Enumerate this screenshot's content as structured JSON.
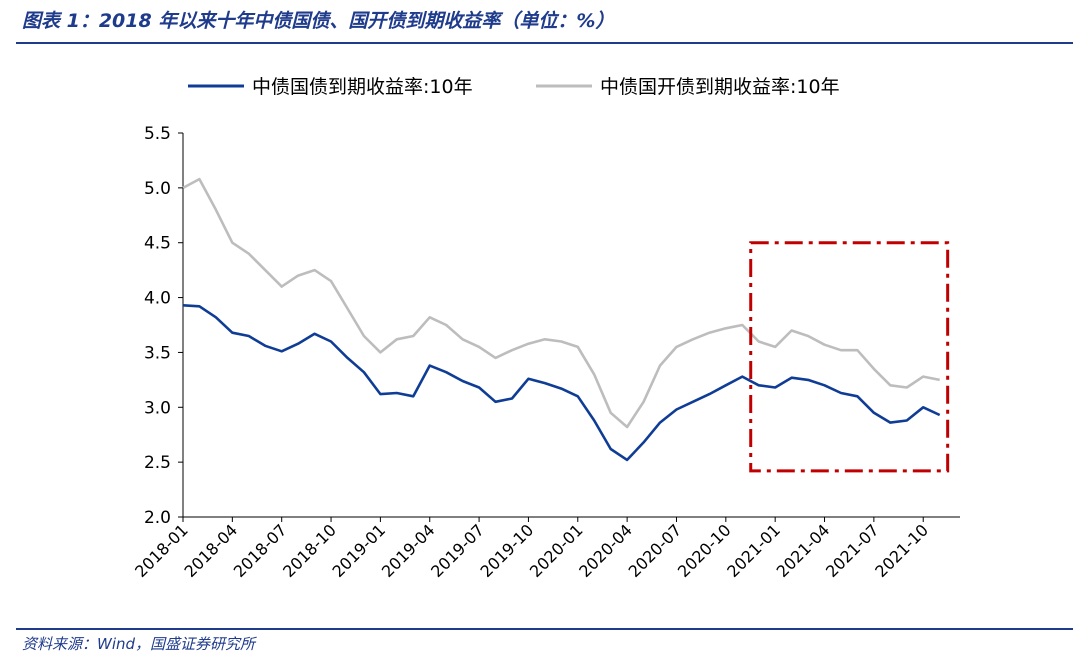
{
  "title": "图表 1：2018 年以来十年中债国债、国开债到期收益率（单位：%）",
  "source": "资料来源：Wind，国盛证券研究所",
  "colors": {
    "accent": "#1f3b8c",
    "series_treasury": "#0f3d96",
    "series_cdb": "#bdbdbd",
    "highlight_box": "#c00000"
  },
  "chart_data": {
    "type": "line",
    "title": "",
    "xlabel": "",
    "ylabel": "",
    "ylim": [
      2.0,
      5.5
    ],
    "yticks": [
      "5.5",
      "5.0",
      "4.5",
      "4.0",
      "3.5",
      "3.0",
      "2.5",
      "2.0"
    ],
    "xticks": [
      "2018-01",
      "2018-04",
      "2018-07",
      "2018-10",
      "2019-01",
      "2019-04",
      "2019-07",
      "2019-10",
      "2020-01",
      "2020-04",
      "2020-07",
      "2020-10",
      "2021-01",
      "2021-04",
      "2021-07",
      "2021-10"
    ],
    "x": [
      "2018-01",
      "2018-02",
      "2018-03",
      "2018-04",
      "2018-05",
      "2018-06",
      "2018-07",
      "2018-08",
      "2018-09",
      "2018-10",
      "2018-11",
      "2018-12",
      "2019-01",
      "2019-02",
      "2019-03",
      "2019-04",
      "2019-05",
      "2019-06",
      "2019-07",
      "2019-08",
      "2019-09",
      "2019-10",
      "2019-11",
      "2019-12",
      "2020-01",
      "2020-02",
      "2020-03",
      "2020-04",
      "2020-05",
      "2020-06",
      "2020-07",
      "2020-08",
      "2020-09",
      "2020-10",
      "2020-11",
      "2020-12",
      "2021-01",
      "2021-02",
      "2021-03",
      "2021-04",
      "2021-05",
      "2021-06",
      "2021-07",
      "2021-08",
      "2021-09",
      "2021-10",
      "2021-11"
    ],
    "series": [
      {
        "name": "中债国债到期收益率:10年",
        "values": [
          3.93,
          3.92,
          3.82,
          3.68,
          3.65,
          3.56,
          3.51,
          3.58,
          3.67,
          3.6,
          3.45,
          3.32,
          3.12,
          3.13,
          3.1,
          3.38,
          3.32,
          3.24,
          3.18,
          3.05,
          3.08,
          3.26,
          3.22,
          3.17,
          3.1,
          2.88,
          2.62,
          2.52,
          2.68,
          2.86,
          2.98,
          3.05,
          3.12,
          3.2,
          3.28,
          3.2,
          3.18,
          3.27,
          3.25,
          3.2,
          3.13,
          3.1,
          2.95,
          2.86,
          2.88,
          3.0,
          2.93
        ]
      },
      {
        "name": "中债国开债到期收益率:10年",
        "values": [
          5.0,
          5.08,
          4.8,
          4.5,
          4.4,
          4.25,
          4.1,
          4.2,
          4.25,
          4.15,
          3.9,
          3.65,
          3.5,
          3.62,
          3.65,
          3.82,
          3.75,
          3.62,
          3.55,
          3.45,
          3.52,
          3.58,
          3.62,
          3.6,
          3.55,
          3.3,
          2.95,
          2.82,
          3.05,
          3.38,
          3.55,
          3.62,
          3.68,
          3.72,
          3.75,
          3.6,
          3.55,
          3.7,
          3.65,
          3.57,
          3.52,
          3.52,
          3.35,
          3.2,
          3.18,
          3.28,
          3.25
        ]
      }
    ],
    "legend": "top",
    "grid": false,
    "annotations": [
      {
        "type": "dashed-box",
        "x_range": [
          "2020-12",
          "2021-11"
        ],
        "y_range": [
          2.42,
          4.5
        ]
      }
    ]
  }
}
